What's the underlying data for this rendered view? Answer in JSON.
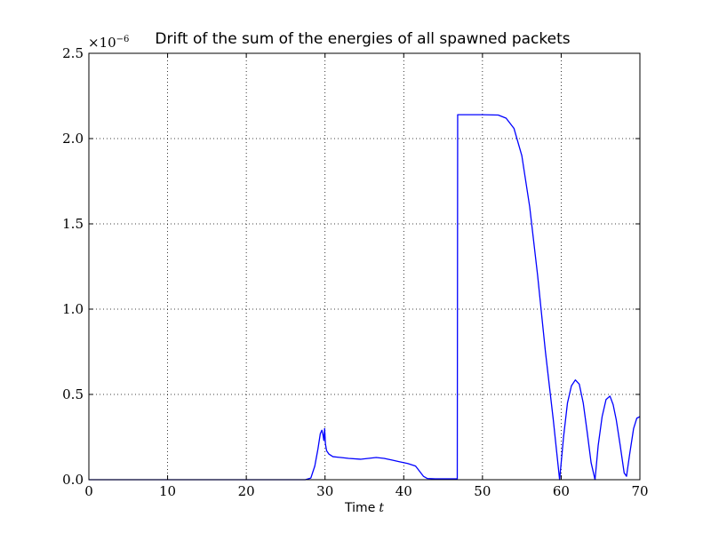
{
  "chart_data": {
    "type": "line",
    "title": "Drift of the sum of the energies of all spawned packets",
    "xlabel_text": "Time",
    "xlabel_var": "t",
    "ylabel": "",
    "y_multiplier": "×10",
    "y_multiplier_exp": "−6",
    "xlim": [
      0,
      70
    ],
    "ylim": [
      0,
      2.5
    ],
    "xticks": [
      0,
      10,
      20,
      30,
      40,
      50,
      60,
      70
    ],
    "xtick_labels": [
      "0",
      "10",
      "20",
      "30",
      "40",
      "50",
      "60",
      "70"
    ],
    "yticks": [
      0,
      0.5,
      1.0,
      1.5,
      2.0,
      2.5
    ],
    "ytick_labels": [
      "0.0",
      "0.5",
      "1.0",
      "1.5",
      "2.0",
      "2.5"
    ],
    "grid": true,
    "series": [
      {
        "color": "#0000ff",
        "x": [
          0,
          27.5,
          28.2,
          28.7,
          29.1,
          29.4,
          29.6,
          29.75,
          29.85,
          29.95,
          30.05,
          30.2,
          30.5,
          31,
          32,
          33,
          34.5,
          35.5,
          36.5,
          37.5,
          38.5,
          39.5,
          40.5,
          41.5,
          42,
          42.5,
          43,
          44,
          45,
          46,
          46.8,
          46.85,
          47.5,
          50,
          52,
          53,
          54,
          55,
          56,
          57,
          58,
          59,
          59.8,
          60.3,
          60.8,
          61.3,
          61.8,
          62.3,
          62.8,
          63.3,
          63.8,
          64.3,
          64.7,
          65.2,
          65.7,
          66.2,
          66.6,
          67,
          67.5,
          68,
          68.3,
          68.7,
          69.2,
          69.6,
          70
        ],
        "y": [
          0,
          0,
          0.01,
          0.08,
          0.18,
          0.27,
          0.29,
          0.26,
          0.23,
          0.3,
          0.21,
          0.17,
          0.15,
          0.135,
          0.13,
          0.125,
          0.12,
          0.125,
          0.13,
          0.125,
          0.115,
          0.105,
          0.095,
          0.08,
          0.05,
          0.02,
          0.007,
          0.005,
          0.005,
          0.005,
          0.005,
          2.14,
          2.14,
          2.14,
          2.138,
          2.12,
          2.06,
          1.9,
          1.6,
          1.2,
          0.75,
          0.35,
          0.0,
          0.25,
          0.45,
          0.55,
          0.585,
          0.56,
          0.45,
          0.28,
          0.1,
          0.0,
          0.2,
          0.37,
          0.47,
          0.49,
          0.44,
          0.35,
          0.2,
          0.04,
          0.02,
          0.15,
          0.3,
          0.36,
          0.37
        ]
      }
    ]
  }
}
